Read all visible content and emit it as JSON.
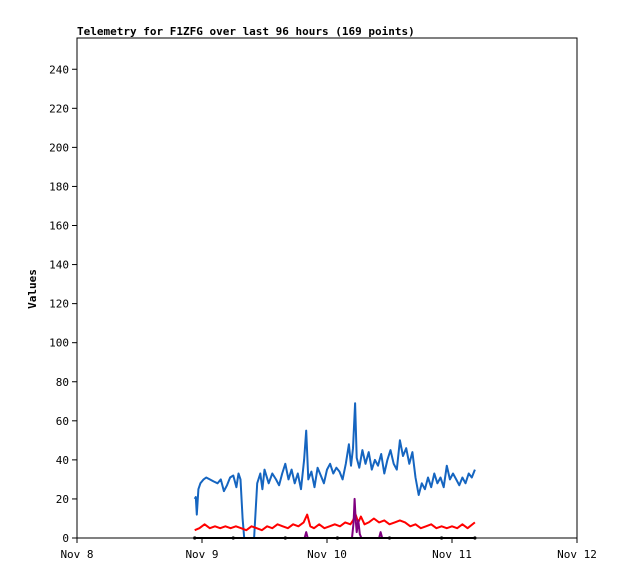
{
  "chart_data": {
    "type": "line",
    "title": "Telemetry for F1ZFG over last 96 hours (169 points)",
    "xlabel": "",
    "ylabel": "Values",
    "x_unit": "hours since Nov 8 00:00",
    "xlim_labels": [
      "Nov 8",
      "Nov 12"
    ],
    "x_ticks": [
      {
        "label": "Nov 8",
        "x": 0
      },
      {
        "label": "Nov 9",
        "x": 24
      },
      {
        "label": "Nov 10",
        "x": 48
      },
      {
        "label": "Nov 11",
        "x": 72
      },
      {
        "label": "Nov 12",
        "x": 96
      }
    ],
    "ylim": [
      0,
      256
    ],
    "y_ticks": [
      0,
      20,
      40,
      60,
      80,
      100,
      120,
      140,
      160,
      180,
      200,
      220,
      240
    ],
    "grid": false,
    "legend": "none",
    "series": [
      {
        "color": "#1565c0",
        "points": [
          [
            22.6,
            20
          ],
          [
            22.8,
            21
          ],
          [
            23.0,
            12
          ],
          [
            23.3,
            25
          ],
          [
            23.7,
            28
          ],
          [
            24.3,
            30
          ],
          [
            24.8,
            31
          ],
          [
            25.5,
            30
          ],
          [
            26.2,
            29
          ],
          [
            27.0,
            28
          ],
          [
            27.6,
            30
          ],
          [
            28.2,
            24
          ],
          [
            28.8,
            27
          ],
          [
            29.4,
            31
          ],
          [
            30.0,
            32
          ],
          [
            30.6,
            26
          ],
          [
            31.0,
            33
          ],
          [
            31.4,
            30
          ],
          [
            31.8,
            10
          ],
          [
            32.1,
            0
          ],
          [
            33.0,
            0
          ],
          [
            34.0,
            0
          ],
          [
            34.6,
            28
          ],
          [
            35.2,
            33
          ],
          [
            35.6,
            25
          ],
          [
            36.0,
            35
          ],
          [
            36.8,
            28
          ],
          [
            37.5,
            33
          ],
          [
            38.2,
            30
          ],
          [
            38.8,
            27
          ],
          [
            39.4,
            33
          ],
          [
            40.0,
            38
          ],
          [
            40.6,
            30
          ],
          [
            41.2,
            35
          ],
          [
            41.8,
            28
          ],
          [
            42.4,
            33
          ],
          [
            43.0,
            25
          ],
          [
            43.6,
            40
          ],
          [
            44.0,
            55
          ],
          [
            44.4,
            30
          ],
          [
            45.0,
            34
          ],
          [
            45.6,
            26
          ],
          [
            46.2,
            36
          ],
          [
            46.8,
            32
          ],
          [
            47.4,
            28
          ],
          [
            48.0,
            35
          ],
          [
            48.6,
            38
          ],
          [
            49.2,
            33
          ],
          [
            49.8,
            36
          ],
          [
            50.4,
            34
          ],
          [
            51.0,
            30
          ],
          [
            51.6,
            38
          ],
          [
            52.2,
            48
          ],
          [
            52.6,
            37
          ],
          [
            53.0,
            46
          ],
          [
            53.4,
            69
          ],
          [
            53.7,
            41
          ],
          [
            54.2,
            36
          ],
          [
            54.8,
            45
          ],
          [
            55.4,
            38
          ],
          [
            56.0,
            44
          ],
          [
            56.6,
            35
          ],
          [
            57.2,
            40
          ],
          [
            57.8,
            37
          ],
          [
            58.4,
            43
          ],
          [
            59.0,
            33
          ],
          [
            59.6,
            40
          ],
          [
            60.2,
            45
          ],
          [
            60.8,
            38
          ],
          [
            61.4,
            35
          ],
          [
            62.0,
            50
          ],
          [
            62.6,
            42
          ],
          [
            63.2,
            46
          ],
          [
            63.8,
            38
          ],
          [
            64.4,
            44
          ],
          [
            65.0,
            31
          ],
          [
            65.6,
            22
          ],
          [
            66.2,
            28
          ],
          [
            66.8,
            25
          ],
          [
            67.4,
            31
          ],
          [
            68.0,
            26
          ],
          [
            68.6,
            33
          ],
          [
            69.2,
            28
          ],
          [
            69.8,
            31
          ],
          [
            70.4,
            26
          ],
          [
            71.0,
            37
          ],
          [
            71.6,
            30
          ],
          [
            72.2,
            33
          ],
          [
            72.8,
            30
          ],
          [
            73.4,
            27
          ],
          [
            74.0,
            31
          ],
          [
            74.6,
            28
          ],
          [
            75.2,
            33
          ],
          [
            75.8,
            31
          ],
          [
            76.4,
            35
          ]
        ]
      },
      {
        "color": "#ff0000",
        "points": [
          [
            22.6,
            4
          ],
          [
            23.5,
            5
          ],
          [
            24.5,
            7
          ],
          [
            25.5,
            5
          ],
          [
            26.5,
            6
          ],
          [
            27.5,
            5
          ],
          [
            28.5,
            6
          ],
          [
            29.5,
            5
          ],
          [
            30.5,
            6
          ],
          [
            31.5,
            5
          ],
          [
            32.5,
            4
          ],
          [
            33.5,
            6
          ],
          [
            34.5,
            5
          ],
          [
            35.5,
            4
          ],
          [
            36.5,
            6
          ],
          [
            37.5,
            5
          ],
          [
            38.5,
            7
          ],
          [
            39.5,
            6
          ],
          [
            40.5,
            5
          ],
          [
            41.5,
            7
          ],
          [
            42.5,
            6
          ],
          [
            43.5,
            8
          ],
          [
            44.2,
            12
          ],
          [
            44.8,
            6
          ],
          [
            45.5,
            5
          ],
          [
            46.5,
            7
          ],
          [
            47.5,
            5
          ],
          [
            48.5,
            6
          ],
          [
            49.5,
            7
          ],
          [
            50.5,
            6
          ],
          [
            51.5,
            8
          ],
          [
            52.5,
            7
          ],
          [
            53.0,
            9
          ],
          [
            53.5,
            12
          ],
          [
            54.0,
            8
          ],
          [
            54.5,
            11
          ],
          [
            55.2,
            7
          ],
          [
            56.0,
            8
          ],
          [
            57.0,
            10
          ],
          [
            58.0,
            8
          ],
          [
            59.0,
            9
          ],
          [
            60.0,
            7
          ],
          [
            61.0,
            8
          ],
          [
            62.0,
            9
          ],
          [
            63.0,
            8
          ],
          [
            64.0,
            6
          ],
          [
            65.0,
            7
          ],
          [
            66.0,
            5
          ],
          [
            67.0,
            6
          ],
          [
            68.0,
            7
          ],
          [
            69.0,
            5
          ],
          [
            70.0,
            6
          ],
          [
            71.0,
            5
          ],
          [
            72.0,
            6
          ],
          [
            73.0,
            5
          ],
          [
            74.0,
            7
          ],
          [
            75.0,
            5
          ],
          [
            76.4,
            8
          ]
        ]
      },
      {
        "color": "#800080",
        "points": [
          [
            22.6,
            0
          ],
          [
            30.0,
            0
          ],
          [
            36.0,
            0
          ],
          [
            42.0,
            0
          ],
          [
            43.7,
            0
          ],
          [
            44.0,
            3
          ],
          [
            44.3,
            0
          ],
          [
            50.0,
            0
          ],
          [
            52.8,
            0
          ],
          [
            53.1,
            8
          ],
          [
            53.3,
            20
          ],
          [
            53.5,
            10
          ],
          [
            53.7,
            3
          ],
          [
            54.0,
            9
          ],
          [
            54.3,
            2
          ],
          [
            54.6,
            0
          ],
          [
            58.0,
            0
          ],
          [
            58.3,
            3
          ],
          [
            58.6,
            0
          ],
          [
            64.0,
            0
          ],
          [
            70.0,
            0
          ],
          [
            76.4,
            0
          ]
        ]
      },
      {
        "color": "#000000",
        "points": [
          [
            22.6,
            0
          ],
          [
            30.0,
            0
          ],
          [
            40.0,
            0
          ],
          [
            50.0,
            0
          ],
          [
            60.0,
            0
          ],
          [
            70.0,
            0
          ],
          [
            76.4,
            0
          ]
        ]
      }
    ]
  }
}
